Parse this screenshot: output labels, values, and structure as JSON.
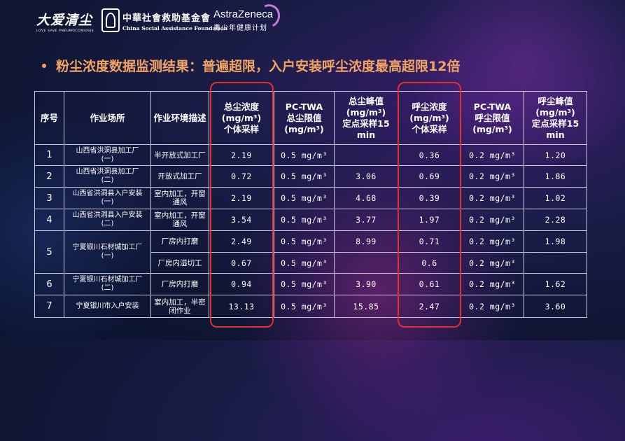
{
  "logos": {
    "brand_cn": "大爱清尘",
    "brand_en": "LOVE SAVE PNEUMOCONIOSIS",
    "foundation_cn": "中華社會救助基金會",
    "foundation_en": "China Social Assistance Foundation",
    "sponsor_en": "AstraZeneca",
    "sponsor_cn": "青少年健康计划"
  },
  "heading": "粉尘浓度数据监测结果：普遍超限，入户安装呼尘浓度最高超限12倍",
  "colors": {
    "heading": "#f3a463",
    "highlight": "#e0302e"
  },
  "table": {
    "headers": {
      "no": "序号",
      "site": "作业场所",
      "env": "作业环境描述",
      "total_conc": "总尘浓度\n(mg/m³)\n个体采样",
      "total_twa": "PC-TWA\n总尘限值\n(mg/m³)",
      "total_peak": "总尘峰值\n(mg/m³)\n定点采样15\nmin",
      "resp_conc": "呼尘浓度\n(mg/m³)\n个体采样",
      "resp_twa": "PC-TWA\n呼尘限值\n(mg/m³)",
      "resp_peak": "呼尘峰值\n(mg/m³)\n定点采样15\nmin"
    },
    "rows": [
      {
        "no": "1",
        "site": "山西省洪洞县加工厂\n(一)",
        "env": "半开放式加工厂",
        "total_conc": "2.19",
        "total_twa": "0.5 mg/m³",
        "total_peak": "",
        "resp_conc": "0.36",
        "resp_twa": "0.2 mg/m³",
        "resp_peak": "1.20"
      },
      {
        "no": "2",
        "site": "山西省洪洞县加工厂\n(二)",
        "env": "开放式加工厂",
        "total_conc": "0.72",
        "total_twa": "0.5 mg/m³",
        "total_peak": "3.06",
        "resp_conc": "0.69",
        "resp_twa": "0.2 mg/m³",
        "resp_peak": "1.86"
      },
      {
        "no": "3",
        "site": "山西省洪洞县入户安装\n(一)",
        "env": "室内加工，开窗\n通风",
        "total_conc": "2.19",
        "total_twa": "0.5 mg/m³",
        "total_peak": "4.68",
        "resp_conc": "0.39",
        "resp_twa": "0.2 mg/m³",
        "resp_peak": "1.02"
      },
      {
        "no": "4",
        "site": "山西省洪洞县入户安装\n(二)",
        "env": "室内加工，开窗\n通风",
        "total_conc": "3.54",
        "total_twa": "0.5 mg/m³",
        "total_peak": "3.77",
        "resp_conc": "1.97",
        "resp_twa": "0.2 mg/m³",
        "resp_peak": "2.28"
      },
      {
        "no": "5",
        "site": "宁夏银川石材城加工厂\n(一)",
        "env": "厂房内打磨",
        "total_conc": "2.49",
        "total_twa": "0.5 mg/m³",
        "total_peak": "8.99",
        "resp_conc": "0.71",
        "resp_twa": "0.2 mg/m³",
        "resp_peak": "1.98"
      },
      {
        "env": "厂房内湿切工",
        "total_conc": "0.67",
        "total_twa": "0.5 mg/m³",
        "total_peak": "",
        "resp_conc": "0.6",
        "resp_twa": "0.2 mg/m³",
        "resp_peak": ""
      },
      {
        "no": "6",
        "site": "宁夏银川石材城加工厂\n(二)",
        "env": "厂房内打磨",
        "total_conc": "0.94",
        "total_twa": "0.5 mg/m³",
        "total_peak": "3.90",
        "resp_conc": "0.61",
        "resp_twa": "0.2 mg/m³",
        "resp_peak": "1.62"
      },
      {
        "no": "7",
        "site": "宁夏银川市入户安装",
        "env": "室内加工，半密\n闭作业",
        "total_conc": "13.13",
        "total_twa": "0.5 mg/m³",
        "total_peak": "15.85",
        "resp_conc": "2.47",
        "resp_twa": "0.2 mg/m³",
        "resp_peak": "3.60"
      }
    ]
  }
}
